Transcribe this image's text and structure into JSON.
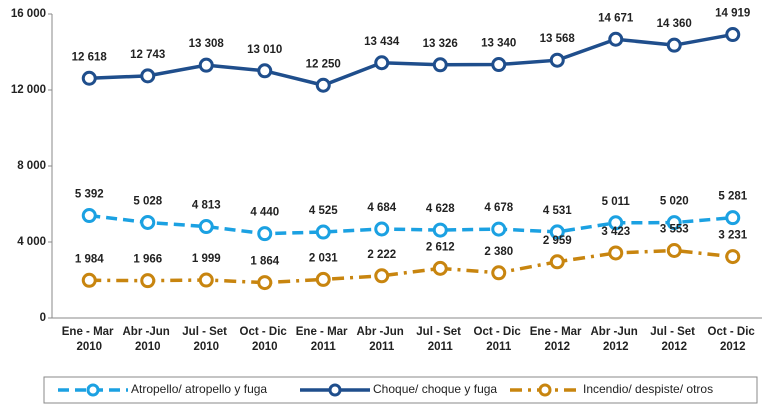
{
  "chart_data": {
    "type": "line",
    "categories": [
      "Ene - Mar 2010",
      "Abr -Jun 2010",
      "Jul - Set 2010",
      "Oct - Dic 2010",
      "Ene - Mar 2011",
      "Abr -Jun 2011",
      "Jul - Set 2011",
      "Oct - Dic 2011",
      "Ene - Mar 2012",
      "Abr -Jun 2012",
      "Jul - Set 2012",
      "Oct - Dic 2012"
    ],
    "series": [
      {
        "name": "Atropello/ atropello y fuga",
        "color": "#1ba1e2",
        "dash": "11,6",
        "values": [
          5392,
          5028,
          4813,
          4440,
          4525,
          4684,
          4628,
          4678,
          4531,
          5011,
          5020,
          5281
        ],
        "value_labels": [
          "5 392",
          "5 028",
          "4 813",
          "4 440",
          "4 525",
          "4 684",
          "4 628",
          "4 678",
          "4 531",
          "5 011",
          "5 020",
          "5 281"
        ]
      },
      {
        "name": "Choque/ choque y fuga",
        "color": "#1f4e8c",
        "dash": "none",
        "values": [
          12618,
          12743,
          13308,
          13010,
          12250,
          13434,
          13326,
          13340,
          13568,
          14671,
          14360,
          14919
        ],
        "value_labels": [
          "12 618",
          "12 743",
          "13 308",
          "13 010",
          "12 250",
          "13 434",
          "13 326",
          "13 340",
          "13 568",
          "14 671",
          "14 360",
          "14 919"
        ]
      },
      {
        "name": "Incendio/ despiste/ otros",
        "color": "#c8850f",
        "dash": "12,6,3,6",
        "values": [
          1984,
          1966,
          1999,
          1864,
          2031,
          2222,
          2612,
          2380,
          2959,
          3423,
          3553,
          3231
        ],
        "value_labels": [
          "1 984",
          "1 966",
          "1 999",
          "1 864",
          "2 031",
          "2 222",
          "2 612",
          "2 380",
          "2 959",
          "3 423",
          "3 553",
          "3 231"
        ]
      }
    ],
    "ylim": [
      0,
      16000
    ],
    "yticks": [
      0,
      {
        "value": 4000,
        "label": "4 000"
      },
      {
        "value": 8000,
        "label": "8 000"
      },
      {
        "value": 12000,
        "label": "12 000"
      },
      {
        "value": 16000,
        "label": "16 000"
      }
    ],
    "legend": "bottom"
  }
}
